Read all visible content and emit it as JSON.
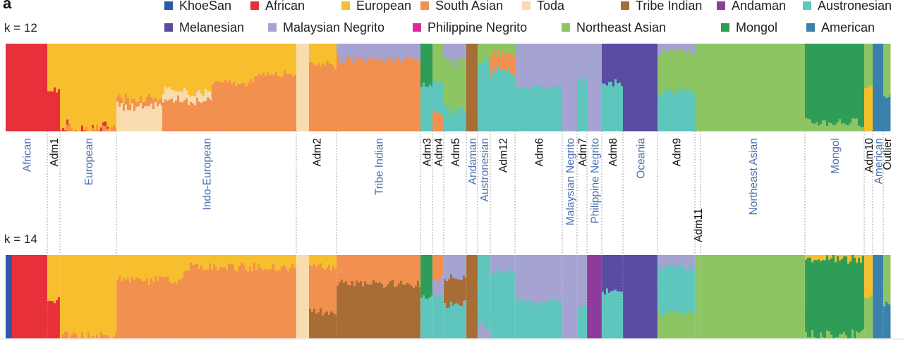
{
  "figure": {
    "panel_letter": "a"
  },
  "legend": [
    {
      "name": "KhoeSan",
      "color": "#2f58a9"
    },
    {
      "name": "African",
      "color": "#e8303a"
    },
    {
      "name": "European",
      "color": "#f7be2d"
    },
    {
      "name": "South Asian",
      "color": "#f1904f"
    },
    {
      "name": "Toda",
      "color": "#f8dcae"
    },
    {
      "name": "Tribe Indian",
      "color": "#a86c35"
    },
    {
      "name": "Andaman",
      "color": "#8e3c9c"
    },
    {
      "name": "Austronesian",
      "color": "#5ec6bd"
    },
    {
      "name": "Melanesian",
      "color": "#5b4ba3"
    },
    {
      "name": "Malaysian Negrito",
      "color": "#a5a3d1"
    },
    {
      "name": "Philippine Negrito",
      "color": "#e0289a"
    },
    {
      "name": "Northeast Asian",
      "color": "#8cc562"
    },
    {
      "name": "Mongol",
      "color": "#2f9d57"
    },
    {
      "name": "American",
      "color": "#3a82ad"
    }
  ],
  "chart_data": {
    "type": "stacked-bar (admixture proportions)",
    "xlabel": "",
    "ylabel": "",
    "ylim": [
      0,
      1
    ],
    "groups": [
      {
        "name": "African",
        "type": "population",
        "from": 8,
        "to": 67
      },
      {
        "name": "Adm1",
        "type": "admixed",
        "from": 67,
        "to": 85
      },
      {
        "name": "European",
        "type": "population",
        "from": 85,
        "to": 165
      },
      {
        "name": "Indo-European",
        "type": "population",
        "from": 165,
        "to": 420
      },
      {
        "name": "Adm2",
        "type": "admixed",
        "from": 420,
        "to": 477
      },
      {
        "name": "Tribe Indian",
        "type": "population",
        "from": 477,
        "to": 596
      },
      {
        "name": "Adm3",
        "type": "admixed",
        "from": 596,
        "to": 613
      },
      {
        "name": "Adm4",
        "type": "admixed",
        "from": 613,
        "to": 629
      },
      {
        "name": "Adm5",
        "type": "admixed",
        "from": 629,
        "to": 661
      },
      {
        "name": "Andaman",
        "type": "population",
        "from": 661,
        "to": 677
      },
      {
        "name": "Austronesian",
        "type": "population",
        "from": 677,
        "to": 695
      },
      {
        "name": "Adm12",
        "type": "admixed",
        "from": 695,
        "to": 730
      },
      {
        "name": "Adm6",
        "type": "admixed",
        "from": 730,
        "to": 797
      },
      {
        "name": "Malaysian Negrito",
        "type": "population",
        "from": 797,
        "to": 818
      },
      {
        "name": "Adm7",
        "type": "admixed",
        "from": 818,
        "to": 832
      },
      {
        "name": "Philippine Negrito",
        "type": "population",
        "from": 832,
        "to": 853
      },
      {
        "name": "Adm8",
        "type": "admixed",
        "from": 853,
        "to": 883
      },
      {
        "name": "Oceania",
        "type": "population",
        "from": 883,
        "to": 932
      },
      {
        "name": "Adm9",
        "type": "admixed",
        "from": 932,
        "to": 985
      },
      {
        "name": "Adm11",
        "type": "admixed",
        "from": 985,
        "to": 993
      },
      {
        "name": "Northeast Asian",
        "type": "population",
        "from": 993,
        "to": 1141
      },
      {
        "name": "Mongol",
        "type": "population",
        "from": 1141,
        "to": 1225
      },
      {
        "name": "Adm10",
        "type": "admixed",
        "from": 1225,
        "to": 1237
      },
      {
        "name": "American",
        "type": "population",
        "from": 1237,
        "to": 1252
      },
      {
        "name": "Outlier",
        "type": "admixed",
        "from": 1252,
        "to": 1262
      }
    ],
    "panels": [
      {
        "label_k": "k = 12",
        "K": 12,
        "segments": [
          {
            "from": 8,
            "to": 67,
            "c": [
              [
                "African",
                1.0
              ]
            ]
          },
          {
            "from": 67,
            "to": 85,
            "c": [
              [
                "European",
                0.55
              ],
              [
                "African",
                0.45
              ]
            ]
          },
          {
            "from": 85,
            "to": 165,
            "c": [
              [
                "European",
                0.97
              ],
              [
                "African",
                0.01
              ],
              [
                "South Asian",
                0.02
              ]
            ]
          },
          {
            "from": 165,
            "to": 230,
            "c": [
              [
                "European",
                0.62
              ],
              [
                "South Asian",
                0.1
              ],
              [
                "Toda",
                0.28
              ]
            ]
          },
          {
            "from": 230,
            "to": 300,
            "c": [
              [
                "European",
                0.55
              ],
              [
                "Toda",
                0.1
              ],
              [
                "South Asian",
                0.35
              ]
            ]
          },
          {
            "from": 300,
            "to": 360,
            "c": [
              [
                "European",
                0.45
              ],
              [
                "South Asian",
                0.55
              ]
            ]
          },
          {
            "from": 360,
            "to": 420,
            "c": [
              [
                "European",
                0.35
              ],
              [
                "South Asian",
                0.65
              ]
            ]
          },
          {
            "from": 420,
            "to": 438,
            "c": [
              [
                "Toda",
                1.0
              ]
            ]
          },
          {
            "from": 438,
            "to": 477,
            "c": [
              [
                "European",
                0.25
              ],
              [
                "South Asian",
                0.75
              ]
            ]
          },
          {
            "from": 477,
            "to": 596,
            "c": [
              [
                "Malaysian Negrito",
                0.18
              ],
              [
                "South Asian",
                0.82
              ]
            ]
          },
          {
            "from": 596,
            "to": 613,
            "c": [
              [
                "Mongol",
                0.5
              ],
              [
                "Austronesian",
                0.5
              ]
            ]
          },
          {
            "from": 613,
            "to": 629,
            "c": [
              [
                "Northeast Asian",
                0.45
              ],
              [
                "Austronesian",
                0.35
              ],
              [
                "South Asian",
                0.2
              ]
            ]
          },
          {
            "from": 629,
            "to": 661,
            "c": [
              [
                "Malaysian Negrito",
                0.2
              ],
              [
                "Northeast Asian",
                0.55
              ],
              [
                "Austronesian",
                0.25
              ]
            ]
          },
          {
            "from": 661,
            "to": 677,
            "c": [
              [
                "Tribe Indian",
                1.0
              ]
            ]
          },
          {
            "from": 677,
            "to": 695,
            "c": [
              [
                "Northeast Asian",
                0.2
              ],
              [
                "Austronesian",
                0.8
              ]
            ]
          },
          {
            "from": 695,
            "to": 730,
            "c": [
              [
                "Northeast Asian",
                0.1
              ],
              [
                "South Asian",
                0.2
              ],
              [
                "Austronesian",
                0.7
              ]
            ]
          },
          {
            "from": 730,
            "to": 797,
            "c": [
              [
                "Malaysian Negrito",
                0.5
              ],
              [
                "Austronesian",
                0.5
              ]
            ]
          },
          {
            "from": 797,
            "to": 818,
            "c": [
              [
                "Malaysian Negrito",
                1.0
              ]
            ]
          },
          {
            "from": 818,
            "to": 832,
            "c": [
              [
                "Malaysian Negrito",
                0.4
              ],
              [
                "Austronesian",
                0.6
              ]
            ]
          },
          {
            "from": 832,
            "to": 853,
            "c": [
              [
                "Malaysian Negrito",
                1.0
              ]
            ]
          },
          {
            "from": 853,
            "to": 883,
            "c": [
              [
                "Melanesian",
                0.45
              ],
              [
                "Austronesian",
                0.55
              ]
            ]
          },
          {
            "from": 883,
            "to": 932,
            "c": [
              [
                "Melanesian",
                1.0
              ]
            ]
          },
          {
            "from": 932,
            "to": 985,
            "c": [
              [
                "Malaysian Negrito",
                0.1
              ],
              [
                "Northeast Asian",
                0.45
              ],
              [
                "Austronesian",
                0.45
              ]
            ]
          },
          {
            "from": 985,
            "to": 993,
            "c": [
              [
                "Northeast Asian",
                1.0
              ]
            ]
          },
          {
            "from": 993,
            "to": 1141,
            "c": [
              [
                "Northeast Asian",
                1.0
              ]
            ]
          },
          {
            "from": 1141,
            "to": 1225,
            "c": [
              [
                "Mongol",
                0.9
              ],
              [
                "Northeast Asian",
                0.1
              ]
            ]
          },
          {
            "from": 1225,
            "to": 1237,
            "c": [
              [
                "Northeast Asian",
                0.5
              ],
              [
                "European",
                0.5
              ]
            ]
          },
          {
            "from": 1237,
            "to": 1252,
            "c": [
              [
                "American",
                1.0
              ]
            ]
          },
          {
            "from": 1252,
            "to": 1262,
            "c": [
              [
                "Northeast Asian",
                0.6
              ],
              [
                "American",
                0.4
              ]
            ]
          }
        ]
      },
      {
        "label_k": "k = 14",
        "K": 14,
        "segments": [
          {
            "from": 8,
            "to": 17,
            "c": [
              [
                "KhoeSan",
                1.0
              ]
            ]
          },
          {
            "from": 17,
            "to": 67,
            "c": [
              [
                "African",
                1.0
              ]
            ]
          },
          {
            "from": 67,
            "to": 85,
            "c": [
              [
                "European",
                0.55
              ],
              [
                "African",
                0.45
              ]
            ]
          },
          {
            "from": 85,
            "to": 165,
            "c": [
              [
                "European",
                0.98
              ],
              [
                "South Asian",
                0.02
              ]
            ]
          },
          {
            "from": 165,
            "to": 260,
            "c": [
              [
                "European",
                0.3
              ],
              [
                "South Asian",
                0.7
              ]
            ]
          },
          {
            "from": 260,
            "to": 420,
            "c": [
              [
                "European",
                0.15
              ],
              [
                "South Asian",
                0.85
              ]
            ]
          },
          {
            "from": 420,
            "to": 438,
            "c": [
              [
                "Toda",
                1.0
              ]
            ]
          },
          {
            "from": 438,
            "to": 477,
            "c": [
              [
                "European",
                0.15
              ],
              [
                "South Asian",
                0.55
              ],
              [
                "Tribe Indian",
                0.3
              ]
            ]
          },
          {
            "from": 477,
            "to": 596,
            "c": [
              [
                "South Asian",
                0.35
              ],
              [
                "Tribe Indian",
                0.65
              ]
            ]
          },
          {
            "from": 596,
            "to": 613,
            "c": [
              [
                "Mongol",
                0.5
              ],
              [
                "Austronesian",
                0.5
              ]
            ]
          },
          {
            "from": 613,
            "to": 629,
            "c": [
              [
                "South Asian",
                0.3
              ],
              [
                "Malaysian Negrito",
                0.2
              ],
              [
                "Austronesian",
                0.5
              ]
            ]
          },
          {
            "from": 629,
            "to": 661,
            "c": [
              [
                "Malaysian Negrito",
                0.3
              ],
              [
                "Tribe Indian",
                0.3
              ],
              [
                "Austronesian",
                0.4
              ]
            ]
          },
          {
            "from": 661,
            "to": 677,
            "c": [
              [
                "Tribe Indian",
                1.0
              ]
            ]
          },
          {
            "from": 677,
            "to": 695,
            "c": [
              [
                "Austronesian",
                0.85
              ],
              [
                "Malaysian Negrito",
                0.15
              ]
            ]
          },
          {
            "from": 695,
            "to": 730,
            "c": [
              [
                "Malaysian Negrito",
                0.2
              ],
              [
                "Austronesian",
                0.8
              ]
            ]
          },
          {
            "from": 730,
            "to": 797,
            "c": [
              [
                "Malaysian Negrito",
                0.55
              ],
              [
                "Austronesian",
                0.45
              ]
            ]
          },
          {
            "from": 797,
            "to": 818,
            "c": [
              [
                "Malaysian Negrito",
                1.0
              ]
            ]
          },
          {
            "from": 818,
            "to": 832,
            "c": [
              [
                "Malaysian Negrito",
                0.6
              ],
              [
                "Austronesian",
                0.4
              ]
            ]
          },
          {
            "from": 832,
            "to": 853,
            "c": [
              [
                "Andaman",
                1.0
              ]
            ]
          },
          {
            "from": 853,
            "to": 883,
            "c": [
              [
                "Melanesian",
                0.45
              ],
              [
                "Austronesian",
                0.55
              ]
            ]
          },
          {
            "from": 883,
            "to": 932,
            "c": [
              [
                "Melanesian",
                1.0
              ]
            ]
          },
          {
            "from": 932,
            "to": 985,
            "c": [
              [
                "Malaysian Negrito",
                0.15
              ],
              [
                "Austronesian",
                0.55
              ],
              [
                "Northeast Asian",
                0.3
              ]
            ]
          },
          {
            "from": 985,
            "to": 993,
            "c": [
              [
                "Northeast Asian",
                1.0
              ]
            ]
          },
          {
            "from": 993,
            "to": 1141,
            "c": [
              [
                "Northeast Asian",
                1.0
              ]
            ]
          },
          {
            "from": 1141,
            "to": 1225,
            "c": [
              [
                "European",
                0.05
              ],
              [
                "Mongol",
                0.9
              ],
              [
                "Northeast Asian",
                0.05
              ]
            ]
          },
          {
            "from": 1225,
            "to": 1237,
            "c": [
              [
                "European",
                0.5
              ],
              [
                "Northeast Asian",
                0.5
              ]
            ]
          },
          {
            "from": 1237,
            "to": 1252,
            "c": [
              [
                "American",
                1.0
              ]
            ]
          },
          {
            "from": 1252,
            "to": 1262,
            "c": [
              [
                "Northeast Asian",
                0.6
              ],
              [
                "American",
                0.4
              ]
            ]
          }
        ]
      }
    ]
  }
}
